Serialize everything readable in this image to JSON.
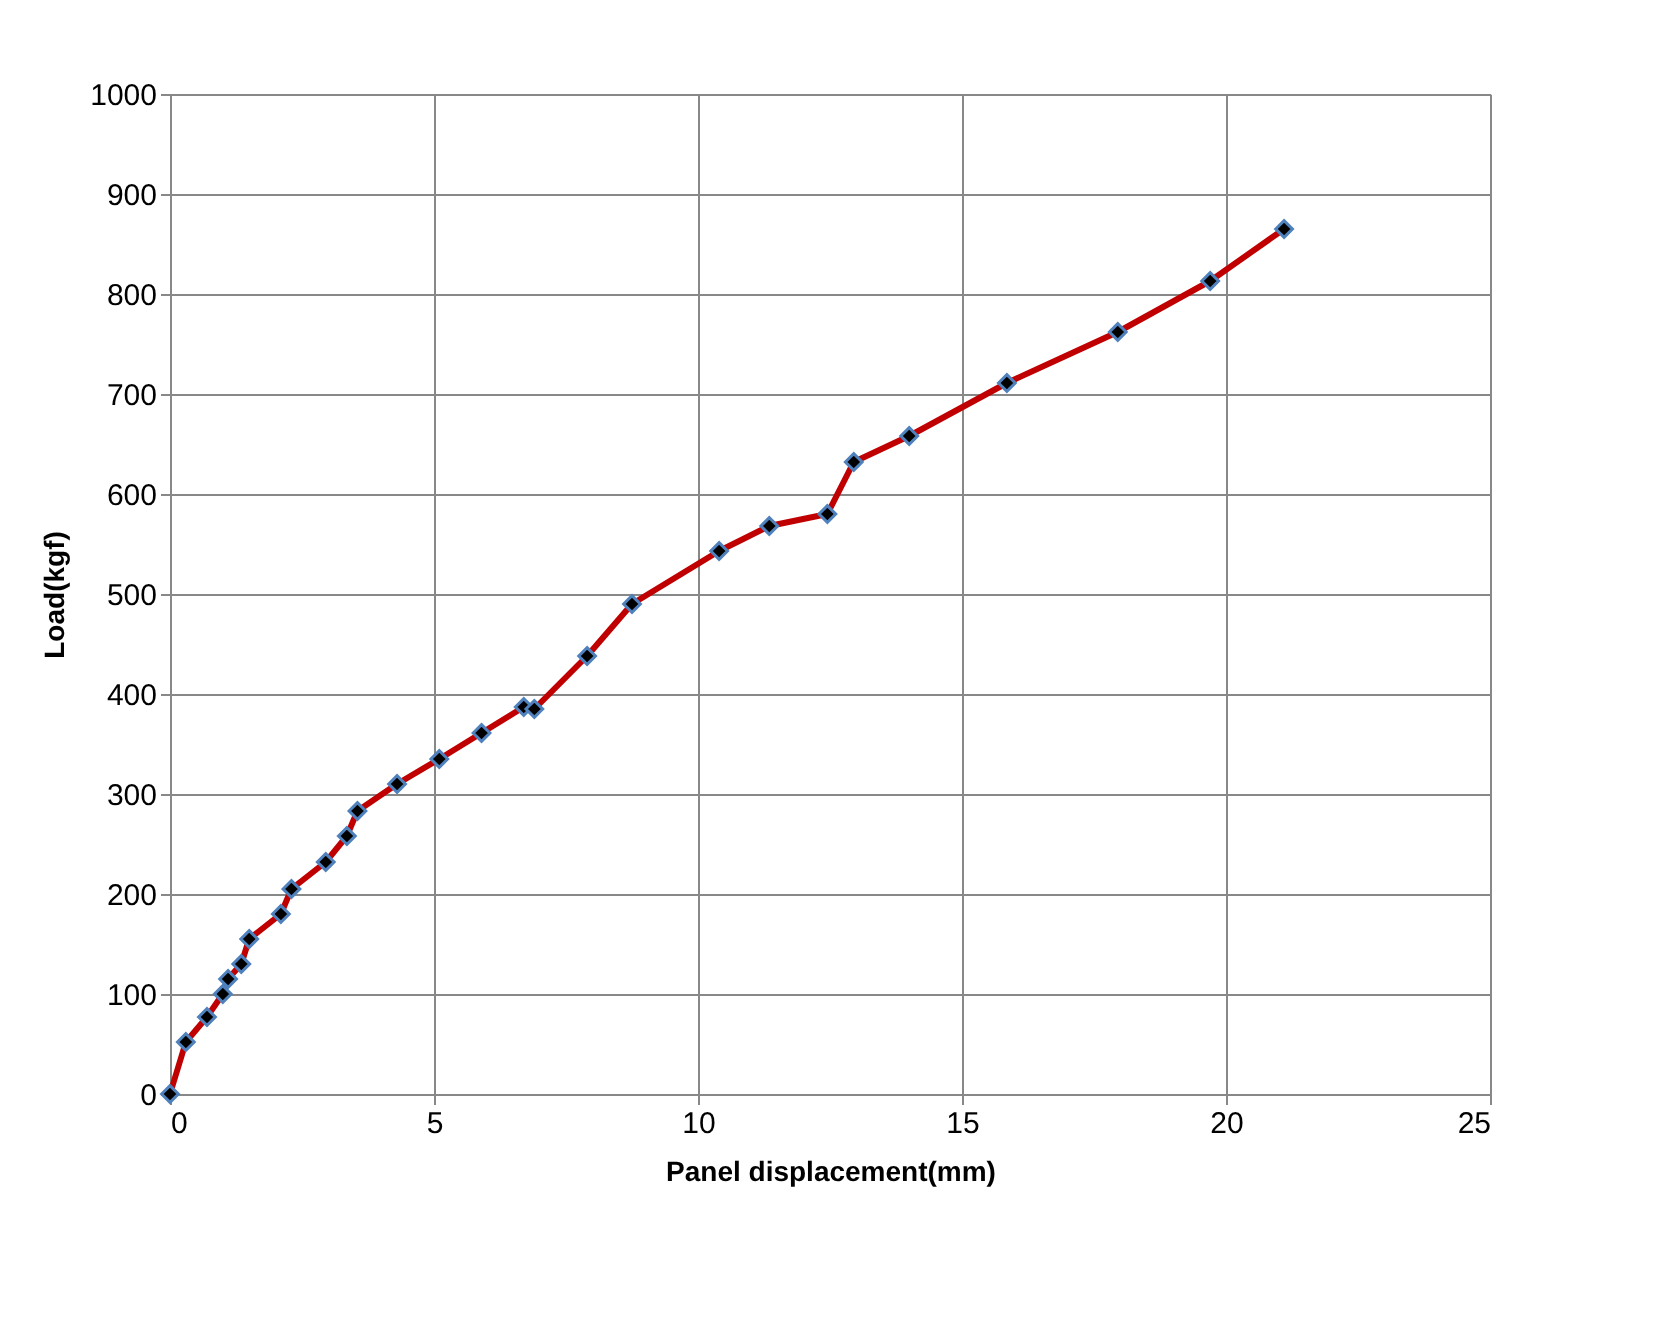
{
  "chart_data": {
    "type": "line",
    "xlabel": "Panel displacement(mm)",
    "ylabel": "Load(kgf)",
    "xlim": [
      0,
      25
    ],
    "xticks": [
      0,
      5,
      10,
      15,
      20,
      25
    ],
    "ylim": [
      0,
      1000
    ],
    "yticks": [
      0,
      100,
      200,
      300,
      400,
      500,
      600,
      700,
      800,
      900,
      1000
    ],
    "grid": true,
    "marker": "diamond",
    "line_style": "solid",
    "series": [
      {
        "color": "#c00000",
        "x": [
          0,
          0.3,
          0.7,
          1.0,
          1.1,
          1.35,
          1.5,
          2.1,
          2.3,
          2.95,
          3.35,
          3.55,
          4.3,
          5.1,
          5.9,
          6.7,
          6.9,
          7.9,
          8.75,
          10.4,
          11.35,
          12.45,
          12.95,
          14.0,
          15.85,
          17.95,
          19.7,
          21.1
        ],
        "values": [
          0,
          52,
          77,
          100,
          115,
          130,
          155,
          180,
          205,
          232,
          258,
          283,
          310,
          335,
          361,
          387,
          385,
          438,
          490,
          543,
          568,
          580,
          632,
          658,
          711,
          762,
          813,
          865
        ]
      }
    ]
  }
}
